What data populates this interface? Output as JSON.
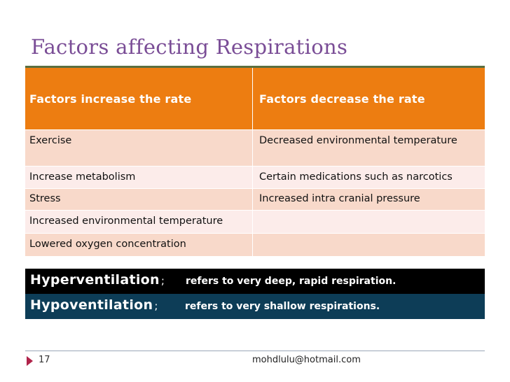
{
  "slide": {
    "title": "Factors affecting Respirations",
    "page_number": "17",
    "email": "mohdlulu@hotmail.com"
  },
  "table": {
    "headers": [
      "Factors increase the rate",
      "Factors decrease the rate"
    ],
    "rows": [
      [
        "Exercise",
        "Decreased environmental temperature"
      ],
      [
        "Increase metabolism",
        "Certain medications such as narcotics"
      ],
      [
        "Stress",
        "Increased intra cranial pressure"
      ],
      [
        "Increased environmental temperature",
        ""
      ],
      [
        "Lowered oxygen concentration",
        ""
      ]
    ]
  },
  "ventilation": [
    {
      "term": "Hyperventilation",
      "separator": ";",
      "definition": "refers to very deep, rapid respiration."
    },
    {
      "term": "Hypoventilation",
      "separator": ";",
      "definition": "refers to very shallow respirations."
    }
  ],
  "colors": {
    "title": "#7a4d96",
    "header_orange": "#ed7d11",
    "row_dark": "#f8d9ca",
    "row_light": "#fcecea",
    "hyper_bg": "#000000",
    "hypo_bg": "#0d3d57",
    "footer_marker": "#b0234a"
  },
  "icons": {
    "footer_marker": "triangle-right-icon"
  }
}
